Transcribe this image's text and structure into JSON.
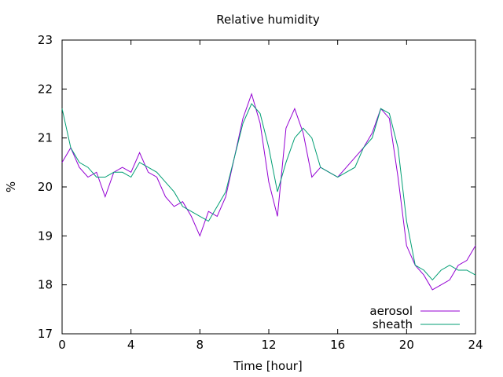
{
  "chart_data": {
    "type": "line",
    "title": "Relative humidity",
    "xlabel": "Time [hour]",
    "ylabel": "%",
    "xlim": [
      0,
      24
    ],
    "ylim": [
      17,
      23
    ],
    "x_ticks": [
      "0",
      "4",
      "8",
      "12",
      "16",
      "20",
      "24"
    ],
    "y_ticks": [
      "17",
      "18",
      "19",
      "20",
      "21",
      "22",
      "23"
    ],
    "grid": false,
    "legend_position": "bottom-right",
    "series": [
      {
        "name": "aerosol",
        "color": "#9400d3",
        "x": [
          0,
          0.5,
          1,
          1.5,
          2,
          2.5,
          3,
          3.5,
          4,
          4.5,
          5,
          5.5,
          6,
          6.5,
          7,
          7.5,
          8,
          8.5,
          9,
          9.5,
          10,
          10.5,
          11,
          11.5,
          12,
          12.5,
          13,
          13.5,
          14,
          14.5,
          15,
          15.5,
          16,
          16.5,
          17,
          17.5,
          18,
          18.5,
          19,
          19.5,
          20,
          20.5,
          21,
          21.5,
          22,
          22.5,
          23,
          23.5,
          24
        ],
        "y": [
          20.5,
          20.8,
          20.4,
          20.2,
          20.3,
          19.8,
          20.3,
          20.4,
          20.3,
          20.7,
          20.3,
          20.2,
          19.8,
          19.6,
          19.7,
          19.4,
          19.0,
          19.5,
          19.4,
          19.8,
          20.6,
          21.4,
          21.9,
          21.3,
          20.1,
          19.4,
          21.2,
          21.6,
          21.1,
          20.2,
          20.4,
          20.3,
          20.2,
          20.4,
          20.6,
          20.8,
          21.1,
          21.6,
          21.4,
          20.2,
          18.8,
          18.4,
          18.2,
          17.9,
          18.0,
          18.1,
          18.4,
          18.5,
          18.8
        ]
      },
      {
        "name": "sheath",
        "color": "#009e73",
        "x": [
          0,
          0.5,
          1,
          1.5,
          2,
          2.5,
          3,
          3.5,
          4,
          4.5,
          5,
          5.5,
          6,
          6.5,
          7,
          7.5,
          8,
          8.5,
          9,
          9.5,
          10,
          10.5,
          11,
          11.5,
          12,
          12.5,
          13,
          13.5,
          14,
          14.5,
          15,
          15.5,
          16,
          16.5,
          17,
          17.5,
          18,
          18.5,
          19,
          19.5,
          20,
          20.5,
          21,
          21.5,
          22,
          22.5,
          23,
          23.5,
          24
        ],
        "y": [
          21.6,
          20.8,
          20.5,
          20.4,
          20.2,
          20.2,
          20.3,
          20.3,
          20.2,
          20.5,
          20.4,
          20.3,
          20.1,
          19.9,
          19.6,
          19.5,
          19.4,
          19.3,
          19.6,
          19.9,
          20.6,
          21.3,
          21.7,
          21.5,
          20.8,
          19.9,
          20.5,
          21.0,
          21.2,
          21.0,
          20.4,
          20.3,
          20.2,
          20.3,
          20.4,
          20.8,
          21.0,
          21.6,
          21.5,
          20.8,
          19.3,
          18.4,
          18.3,
          18.1,
          18.3,
          18.4,
          18.3,
          18.3,
          18.2
        ]
      }
    ]
  }
}
